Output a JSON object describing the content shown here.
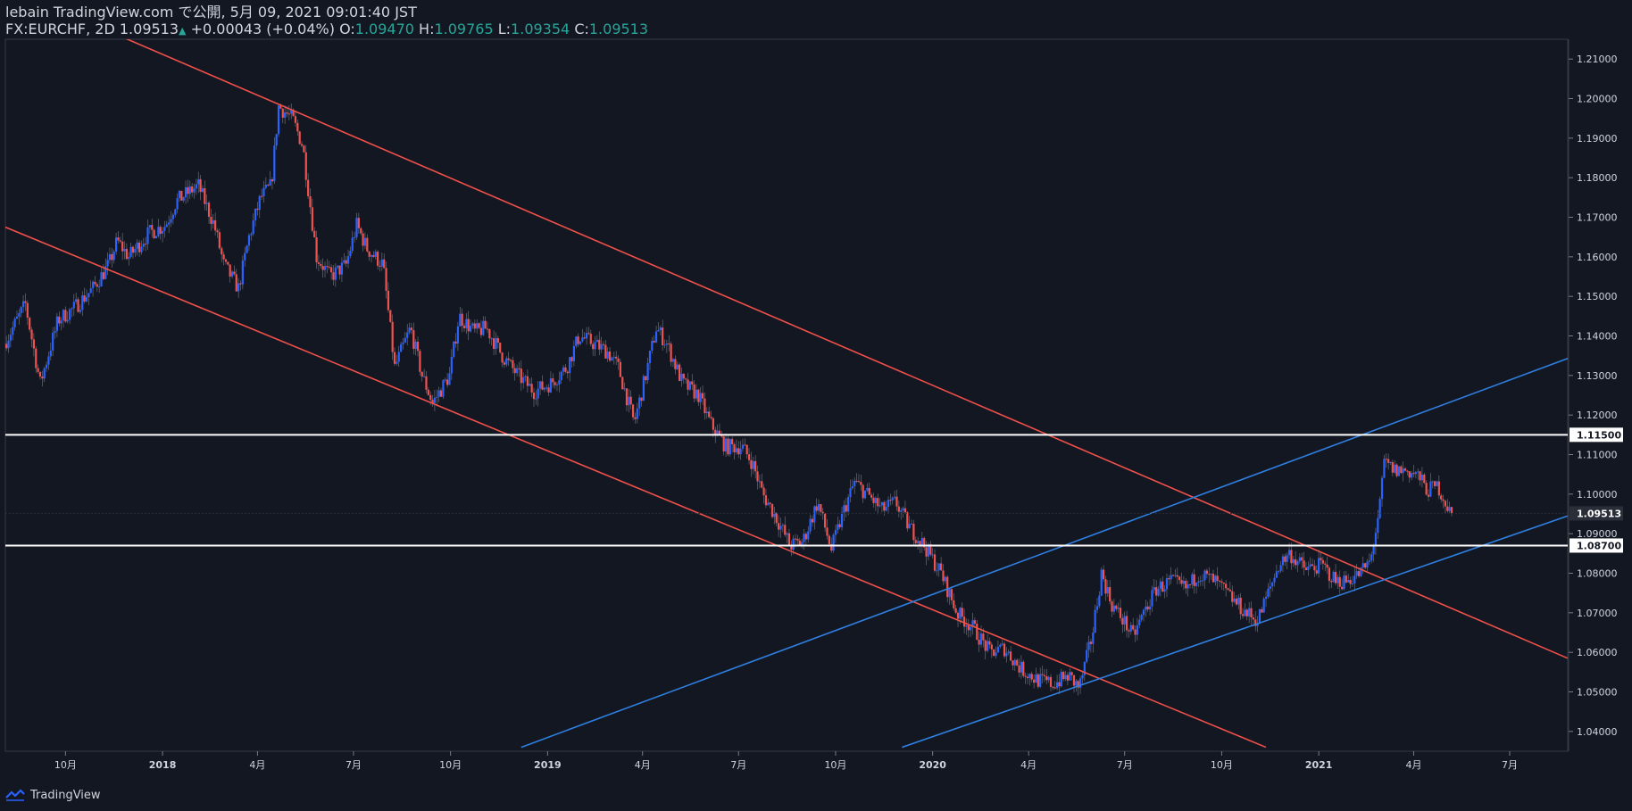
{
  "header": {
    "publish_line": "lebain TradingView.com で公開, 5月 09, 2021 09:01:40 JST",
    "symbol": "FX:EURCHF, 2D",
    "last": "1.09513",
    "change": "+0.00043 (+0.04%)",
    "o_label": "O:",
    "o_value": "1.09470",
    "h_label": "H:",
    "h_value": "1.09765",
    "l_label": "L:",
    "l_value": "1.09354",
    "c_label": "C:",
    "c_value": "1.09513"
  },
  "footer": {
    "brand": "TradingView"
  },
  "colors": {
    "background": "#131722",
    "up": "#2962ff",
    "down": "#ef5350",
    "channel_red": "#f0504a",
    "channel_blue": "#2f7fe0",
    "level": "#ffffff"
  },
  "chart_data": {
    "type": "candlestick",
    "symbol": "FX:EURCHF",
    "interval": "2D",
    "ylim": [
      1.035,
      1.215
    ],
    "y_ticks": [
      "1.21000",
      "1.20000",
      "1.19000",
      "1.18000",
      "1.17000",
      "1.16000",
      "1.15000",
      "1.14000",
      "1.13000",
      "1.12000",
      "1.11000",
      "1.10000",
      "1.09000",
      "1.08000",
      "1.07000",
      "1.06000",
      "1.05000",
      "1.04000"
    ],
    "x_range": [
      "2017-08-05",
      "2021-08-25"
    ],
    "x_ticks": [
      {
        "label": "10月",
        "date": "2017-10-01"
      },
      {
        "label": "2018",
        "date": "2018-01-01",
        "bold": true
      },
      {
        "label": "4月",
        "date": "2018-04-01"
      },
      {
        "label": "7月",
        "date": "2018-07-01"
      },
      {
        "label": "10月",
        "date": "2018-10-01"
      },
      {
        "label": "2019",
        "date": "2019-01-01",
        "bold": true
      },
      {
        "label": "4月",
        "date": "2019-04-01"
      },
      {
        "label": "7月",
        "date": "2019-07-01"
      },
      {
        "label": "10月",
        "date": "2019-10-01"
      },
      {
        "label": "2020",
        "date": "2020-01-01",
        "bold": true
      },
      {
        "label": "4月",
        "date": "2020-04-01"
      },
      {
        "label": "7月",
        "date": "2020-07-01"
      },
      {
        "label": "10月",
        "date": "2020-10-01"
      },
      {
        "label": "2021",
        "date": "2021-01-01",
        "bold": true
      },
      {
        "label": "4月",
        "date": "2021-04-01"
      },
      {
        "label": "7月",
        "date": "2021-07-01"
      }
    ],
    "price_path": [
      [
        "2017-08-05",
        1.138
      ],
      [
        "2017-08-25",
        1.148
      ],
      [
        "2017-09-08",
        1.128
      ],
      [
        "2017-09-25",
        1.144
      ],
      [
        "2017-10-10",
        1.147
      ],
      [
        "2017-10-28",
        1.152
      ],
      [
        "2017-11-12",
        1.158
      ],
      [
        "2017-11-20",
        1.164
      ],
      [
        "2017-12-01",
        1.16
      ],
      [
        "2017-12-20",
        1.166
      ],
      [
        "2018-01-05",
        1.168
      ],
      [
        "2018-01-15",
        1.174
      ],
      [
        "2018-01-25",
        1.176
      ],
      [
        "2018-02-05",
        1.178
      ],
      [
        "2018-02-20",
        1.168
      ],
      [
        "2018-03-01",
        1.158
      ],
      [
        "2018-03-15",
        1.152
      ],
      [
        "2018-03-25",
        1.165
      ],
      [
        "2018-04-05",
        1.175
      ],
      [
        "2018-04-15",
        1.178
      ],
      [
        "2018-04-22",
        1.198
      ],
      [
        "2018-05-05",
        1.195
      ],
      [
        "2018-05-15",
        1.188
      ],
      [
        "2018-05-28",
        1.16
      ],
      [
        "2018-06-10",
        1.155
      ],
      [
        "2018-06-25",
        1.158
      ],
      [
        "2018-07-05",
        1.168
      ],
      [
        "2018-07-15",
        1.162
      ],
      [
        "2018-07-30",
        1.158
      ],
      [
        "2018-08-10",
        1.132
      ],
      [
        "2018-08-25",
        1.142
      ],
      [
        "2018-09-05",
        1.13
      ],
      [
        "2018-09-15",
        1.123
      ],
      [
        "2018-10-01",
        1.13
      ],
      [
        "2018-10-10",
        1.145
      ],
      [
        "2018-10-25",
        1.141
      ],
      [
        "2018-11-05",
        1.142
      ],
      [
        "2018-11-20",
        1.135
      ],
      [
        "2018-12-05",
        1.13
      ],
      [
        "2018-12-20",
        1.126
      ],
      [
        "2019-01-05",
        1.128
      ],
      [
        "2019-01-20",
        1.132
      ],
      [
        "2019-02-01",
        1.14
      ],
      [
        "2019-02-15",
        1.138
      ],
      [
        "2019-02-28",
        1.136
      ],
      [
        "2019-03-10",
        1.132
      ],
      [
        "2019-03-25",
        1.118
      ],
      [
        "2019-04-05",
        1.13
      ],
      [
        "2019-04-15",
        1.142
      ],
      [
        "2019-04-25",
        1.138
      ],
      [
        "2019-05-10",
        1.128
      ],
      [
        "2019-05-25",
        1.125
      ],
      [
        "2019-06-05",
        1.118
      ],
      [
        "2019-06-20",
        1.112
      ],
      [
        "2019-07-05",
        1.112
      ],
      [
        "2019-07-15",
        1.108
      ],
      [
        "2019-07-25",
        1.1
      ],
      [
        "2019-08-05",
        1.095
      ],
      [
        "2019-08-20",
        1.087
      ],
      [
        "2019-09-01",
        1.088
      ],
      [
        "2019-09-15",
        1.098
      ],
      [
        "2019-09-28",
        1.086
      ],
      [
        "2019-10-10",
        1.096
      ],
      [
        "2019-10-20",
        1.103
      ],
      [
        "2019-11-01",
        1.1
      ],
      [
        "2019-11-15",
        1.096
      ],
      [
        "2019-11-28",
        1.098
      ],
      [
        "2019-12-10",
        1.092
      ],
      [
        "2019-12-25",
        1.087
      ],
      [
        "2020-01-10",
        1.08
      ],
      [
        "2020-01-25",
        1.07
      ],
      [
        "2020-02-10",
        1.066
      ],
      [
        "2020-02-25",
        1.06
      ],
      [
        "2020-03-10",
        1.061
      ],
      [
        "2020-03-25",
        1.056
      ],
      [
        "2020-04-10",
        1.053
      ],
      [
        "2020-04-25",
        1.052
      ],
      [
        "2020-05-10",
        1.054
      ],
      [
        "2020-05-20",
        1.051
      ],
      [
        "2020-06-01",
        1.064
      ],
      [
        "2020-06-10",
        1.08
      ],
      [
        "2020-06-20",
        1.072
      ],
      [
        "2020-07-01",
        1.068
      ],
      [
        "2020-07-10",
        1.064
      ],
      [
        "2020-07-20",
        1.07
      ],
      [
        "2020-08-01",
        1.076
      ],
      [
        "2020-08-15",
        1.078
      ],
      [
        "2020-08-30",
        1.076
      ],
      [
        "2020-09-10",
        1.08
      ],
      [
        "2020-09-25",
        1.078
      ],
      [
        "2020-10-10",
        1.074
      ],
      [
        "2020-10-25",
        1.07
      ],
      [
        "2020-11-05",
        1.068
      ],
      [
        "2020-11-15",
        1.075
      ],
      [
        "2020-11-25",
        1.082
      ],
      [
        "2020-12-05",
        1.085
      ],
      [
        "2020-12-20",
        1.081
      ],
      [
        "2021-01-05",
        1.082
      ],
      [
        "2021-01-18",
        1.078
      ],
      [
        "2021-01-28",
        1.078
      ],
      [
        "2021-02-10",
        1.08
      ],
      [
        "2021-02-20",
        1.083
      ],
      [
        "2021-03-01",
        1.097
      ],
      [
        "2021-03-05",
        1.108
      ],
      [
        "2021-03-15",
        1.106
      ],
      [
        "2021-03-25",
        1.106
      ],
      [
        "2021-04-05",
        1.105
      ],
      [
        "2021-04-15",
        1.101
      ],
      [
        "2021-04-25",
        1.102
      ],
      [
        "2021-05-07",
        1.0951
      ]
    ],
    "horizontal_levels": [
      {
        "price": 1.115,
        "label": "1.11500"
      },
      {
        "price": 1.087,
        "label": "1.08700"
      }
    ],
    "last_price": {
      "price": 1.09513,
      "label": "1.09513"
    },
    "trendlines": [
      {
        "name": "",
        "color": "red",
        "p1": [
          "2017-11-20",
          1.216
        ],
        "p2": [
          "2021-08-25",
          1.0585
        ]
      },
      {
        "name": "",
        "color": "red",
        "p1": [
          "2017-08-05",
          1.1675
        ],
        "p2": [
          "2020-11-12",
          1.036
        ]
      },
      {
        "name": "",
        "color": "blue",
        "p1": [
          "2018-12-07",
          1.036
        ],
        "p2": [
          "2021-08-25",
          1.1343
        ]
      },
      {
        "name": "",
        "color": "blue",
        "p1": [
          "2019-12-03",
          1.036
        ],
        "p2": [
          "2021-08-25",
          1.0945
        ]
      }
    ]
  }
}
